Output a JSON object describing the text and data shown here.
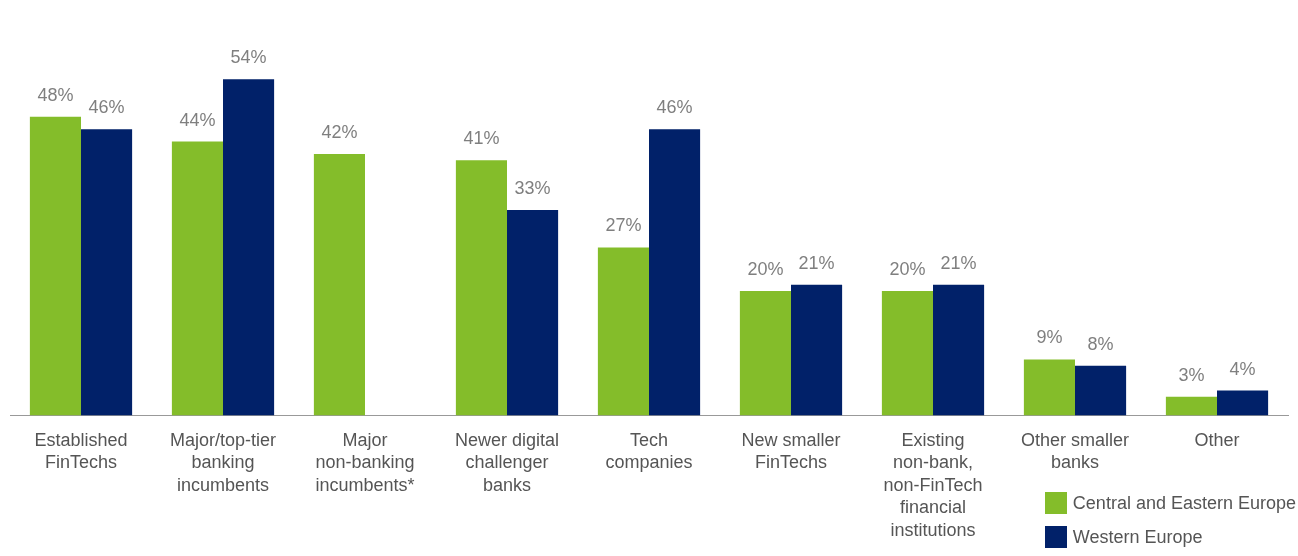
{
  "chart_data": {
    "type": "bar",
    "categories": [
      "Established FinTechs",
      "Major/top-tier banking incumbents",
      "Major non-banking incumbents*",
      "Newer digital challenger banks",
      "Tech companies",
      "New smaller FinTechs",
      "Existing non-bank, non-FinTech financial institutions",
      "Other smaller banks",
      "Other"
    ],
    "series": [
      {
        "name": "Central and Eastern Europe",
        "color": "#84bd2a",
        "values": [
          48,
          44,
          42,
          41,
          27,
          20,
          20,
          9,
          3
        ],
        "value_labels": [
          "48%",
          "44%",
          "42%",
          "41%",
          "27%",
          "20%",
          "20%",
          "9%",
          "3%"
        ]
      },
      {
        "name": "Western Europe",
        "color": "#012169",
        "values": [
          46,
          54,
          null,
          33,
          46,
          21,
          21,
          8,
          4
        ],
        "value_labels": [
          "46%",
          "54%",
          null,
          "33%",
          "46%",
          "21%",
          "21%",
          "8%",
          "4%"
        ]
      }
    ],
    "grid": false,
    "legend": "bottom right",
    "tick_labels": "x"
  }
}
